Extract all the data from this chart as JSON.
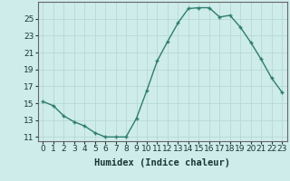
{
  "x": [
    0,
    1,
    2,
    3,
    4,
    5,
    6,
    7,
    8,
    9,
    10,
    11,
    12,
    13,
    14,
    15,
    16,
    17,
    18,
    19,
    20,
    21,
    22,
    23
  ],
  "y": [
    15.2,
    14.7,
    13.5,
    12.8,
    12.3,
    11.5,
    11.0,
    11.0,
    11.0,
    13.2,
    16.5,
    20.0,
    22.3,
    24.5,
    26.2,
    26.3,
    26.3,
    25.2,
    25.4,
    24.0,
    22.2,
    20.2,
    18.0,
    16.3
  ],
  "xlabel": "Humidex (Indice chaleur)",
  "ylim": [
    10.5,
    27.0
  ],
  "xlim": [
    -0.5,
    23.5
  ],
  "yticks": [
    11,
    13,
    15,
    17,
    19,
    21,
    23,
    25
  ],
  "xticks": [
    0,
    1,
    2,
    3,
    4,
    5,
    6,
    7,
    8,
    9,
    10,
    11,
    12,
    13,
    14,
    15,
    16,
    17,
    18,
    19,
    20,
    21,
    22,
    23
  ],
  "line_color": "#2e7d6e",
  "marker": "+",
  "bg_color": "#ceecea",
  "grid_color": "#b8d8d5",
  "axis_color": "#666666",
  "font_color": "#1a3535",
  "marker_size": 3.5,
  "marker_edge_width": 1.0,
  "line_width": 1.0,
  "xlabel_fontsize": 7.5,
  "tick_fontsize": 6.5
}
